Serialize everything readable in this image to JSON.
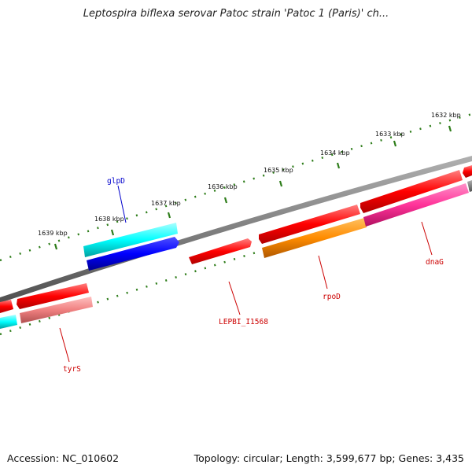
{
  "title": "Leptospira biflexa serovar Patoc strain 'Patoc 1 (Paris)' ch...",
  "footer": {
    "accession": "Accession: NC_010602",
    "summary": "Topology: circular; Length: 3,599,677 bp; Genes: 3,435"
  },
  "ticks": [
    {
      "label": "1632 kbp"
    },
    {
      "label": "1633 kbp"
    },
    {
      "label": "1634 kbp"
    },
    {
      "label": "1635 kbp"
    },
    {
      "label": "1636 kbp"
    },
    {
      "label": "1637 kbp"
    },
    {
      "label": "1638 kbp"
    },
    {
      "label": "1639 kbp"
    }
  ],
  "genes": [
    {
      "label": "glpD",
      "color": "#0000cc"
    },
    {
      "label": "LEPBI_I1568",
      "color": "#cc0000"
    },
    {
      "label": "rpoD",
      "color": "#cc0000"
    },
    {
      "label": "dnaG",
      "color": "#cc0000"
    },
    {
      "label": "tyrS",
      "color": "#cc0000"
    }
  ],
  "colors": {
    "backbone": "#808080",
    "tick": "#2e7d1a",
    "cds_red": "#ff0000",
    "cds_cyan": "#00ffff",
    "cds_blue": "#0000ff",
    "cds_orange": "#ff8c00",
    "cds_pink": "#ff3399",
    "cds_salmon": "#f08080"
  }
}
